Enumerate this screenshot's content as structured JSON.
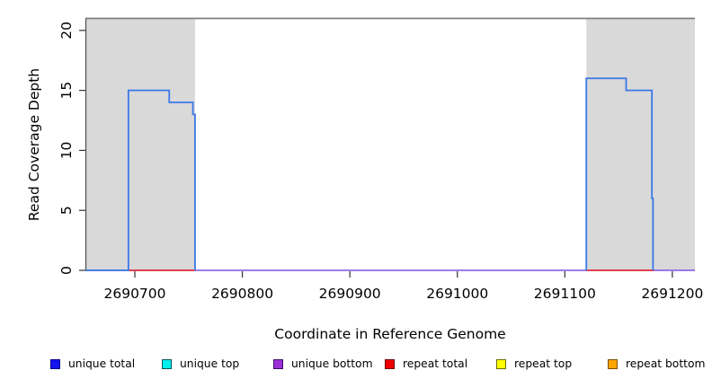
{
  "chart_data": {
    "type": "line",
    "title": "",
    "xlabel": "Coordinate in Reference Genome",
    "ylabel": "Read Coverage Depth",
    "xlim": [
      2690654,
      2691221
    ],
    "ylim": [
      0,
      21
    ],
    "xticks": [
      2690700,
      2690800,
      2690900,
      2691000,
      2691100,
      2691200
    ],
    "yticks": [
      0,
      5,
      10,
      15,
      20
    ],
    "grid": false,
    "box_top_line": {
      "y": 21,
      "color": "#7f7f7f"
    },
    "shaded_regions": [
      {
        "name": "shaded-region-left",
        "x0": 2690654,
        "x1": 2690756,
        "color": "#d9d9d9"
      },
      {
        "name": "shaded-region-right",
        "x0": 2691120,
        "x1": 2691221,
        "color": "#d9d9d9"
      }
    ],
    "series": [
      {
        "name": "unique bottom",
        "color": "#7a55e0",
        "width": 1.6,
        "polylines": [
          [
            [
              2690654,
              0
            ],
            [
              2691221,
              0
            ]
          ]
        ]
      },
      {
        "name": "repeat total",
        "color": "#ee2222",
        "width": 1.6,
        "polylines": [
          [
            [
              2690694,
              0
            ],
            [
              2690756,
              0
            ]
          ],
          [
            [
              2691120,
              0
            ],
            [
              2691183,
              0
            ]
          ]
        ]
      },
      {
        "name": "unique total",
        "color": "#3b78e8",
        "width": 1.8,
        "polylines": [
          [
            [
              2690654,
              0
            ],
            [
              2690694,
              0
            ],
            [
              2690694,
              15
            ],
            [
              2690732,
              15
            ],
            [
              2690732,
              14
            ],
            [
              2690754,
              14
            ],
            [
              2690754,
              13
            ],
            [
              2690756,
              13
            ],
            [
              2690756,
              0
            ]
          ],
          [
            [
              2691120,
              0
            ],
            [
              2691120,
              16
            ],
            [
              2691157,
              16
            ],
            [
              2691157,
              15
            ],
            [
              2691181,
              15
            ],
            [
              2691181,
              6
            ],
            [
              2691182,
              6
            ],
            [
              2691182,
              0
            ]
          ]
        ]
      }
    ],
    "legend_position": "bottom"
  },
  "legend": {
    "items": [
      {
        "label": "unique total",
        "fill": "#1414ee",
        "border": "#00008b"
      },
      {
        "label": "unique top",
        "fill": "#00eeee",
        "border": "#015757"
      },
      {
        "label": "unique bottom",
        "fill": "#9b30d9",
        "border": "#3d0d62"
      },
      {
        "label": "repeat total",
        "fill": "#ee0000",
        "border": "#6b0000"
      },
      {
        "label": "repeat top",
        "fill": "#ffff00",
        "border": "#6b6b00"
      },
      {
        "label": "repeat bottom",
        "fill": "#ffa500",
        "border": "#7a4f00"
      }
    ]
  }
}
